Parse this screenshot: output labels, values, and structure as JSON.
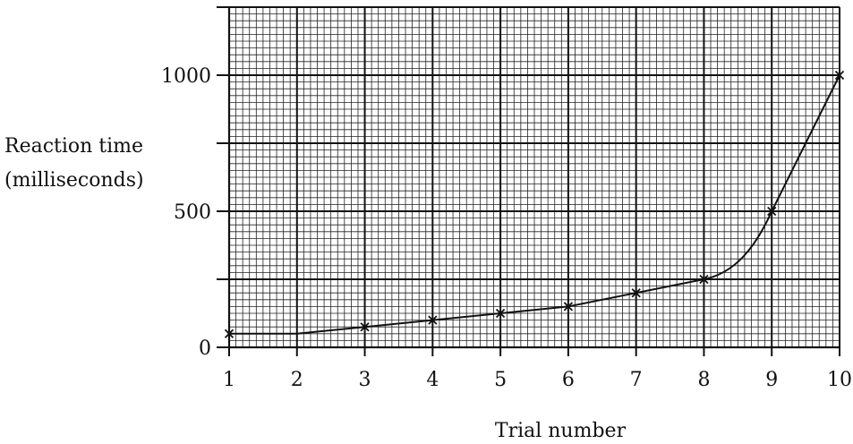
{
  "chart_data": {
    "type": "line",
    "title": "",
    "xlabel": "Trial number",
    "ylabel_lines": [
      "Reaction time",
      "(milliseconds)"
    ],
    "x_tick_labels": [
      "1",
      "2",
      "3",
      "4",
      "5",
      "6",
      "7",
      "8",
      "9",
      "10"
    ],
    "y_tick_labels": [
      "0",
      "500",
      "1000"
    ],
    "y_tick_values": [
      0,
      500,
      1000
    ],
    "xlim": [
      1,
      10
    ],
    "ylim": [
      0,
      1250
    ],
    "grid": true,
    "series": [
      {
        "x": [
          1,
          2,
          3,
          4,
          5,
          6,
          7,
          8,
          9,
          10
        ],
        "y": [
          50,
          50,
          75,
          100,
          125,
          150,
          200,
          250,
          500,
          1000
        ],
        "plotted_points": [
          1,
          3,
          4,
          5,
          6,
          7,
          8,
          9,
          10
        ]
      }
    ],
    "colors": {
      "line": "#111111",
      "grid_minor": "#222222",
      "grid_major": "#111111"
    }
  }
}
